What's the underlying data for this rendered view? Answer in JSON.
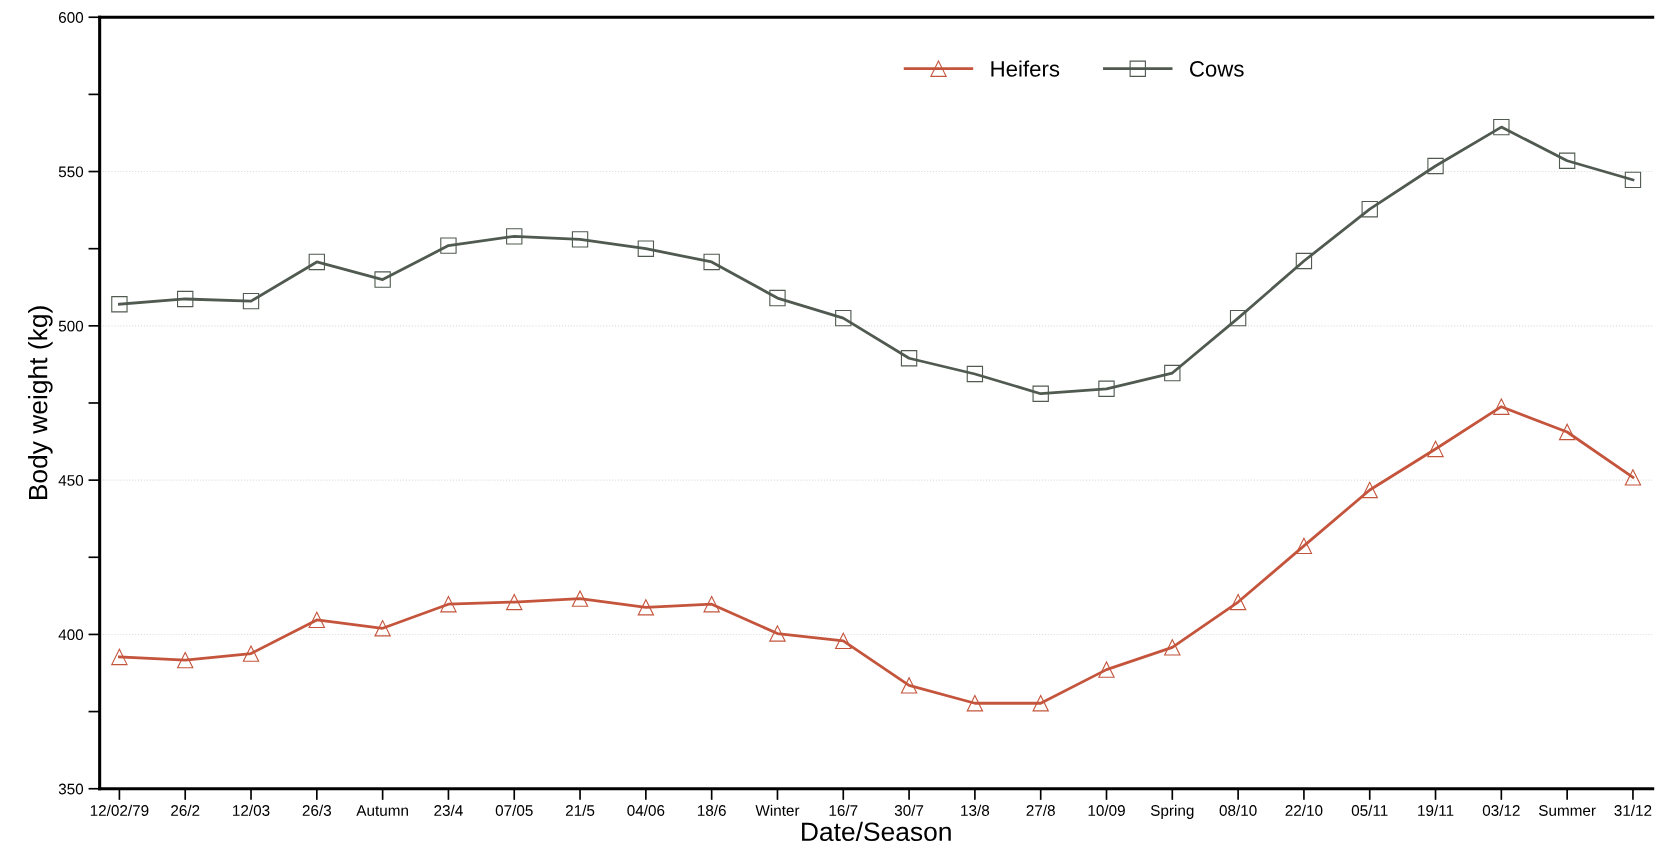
{
  "chart_data": {
    "type": "line",
    "xlabel": "Date/Season",
    "ylabel": "Body weight (kg)",
    "categories": [
      "12/02/79",
      "26/2",
      "12/03",
      "26/3",
      "Autumn",
      "23/4",
      "07/05",
      "21/5",
      "04/06",
      "18/6",
      "Winter",
      "16/7",
      "30/7",
      "13/8",
      "27/8",
      "10/09",
      "Spring",
      "08/10",
      "22/10",
      "05/11",
      "19/11",
      "03/12",
      "Summer",
      "31/12"
    ],
    "series": [
      {
        "name": "Heifers",
        "color": "#c4553c",
        "marker": "triangle",
        "values": [
          392.7,
          391.7,
          393.8,
          404.7,
          402,
          409.8,
          410.5,
          411.6,
          408.8,
          409.8,
          400.3,
          397.9,
          383.5,
          377.7,
          377.7,
          388.6,
          395.8,
          410.5,
          428.7,
          446.8,
          460.1,
          473.8,
          465.6,
          450.9
        ]
      },
      {
        "name": "Cows",
        "color": "#505a50",
        "marker": "square",
        "values": [
          507,
          508.7,
          508,
          520.7,
          515,
          526,
          529,
          528,
          525,
          520.7,
          509,
          502.5,
          489.5,
          484.4,
          478,
          479.6,
          484.7,
          502.5,
          521,
          537.8,
          551.8,
          564.4,
          553.5,
          547.3
        ]
      }
    ],
    "ylim": [
      350,
      600
    ],
    "yticks": [
      350,
      {
        "value": 375,
        "label": null
      },
      400,
      {
        "value": 425,
        "label": null
      },
      450,
      {
        "value": 475,
        "label": null
      },
      500,
      {
        "value": 525,
        "label": null
      },
      550,
      {
        "value": 575,
        "label": null
      },
      600
    ],
    "grid": "y",
    "legend": "top right",
    "line_style": "solid"
  }
}
